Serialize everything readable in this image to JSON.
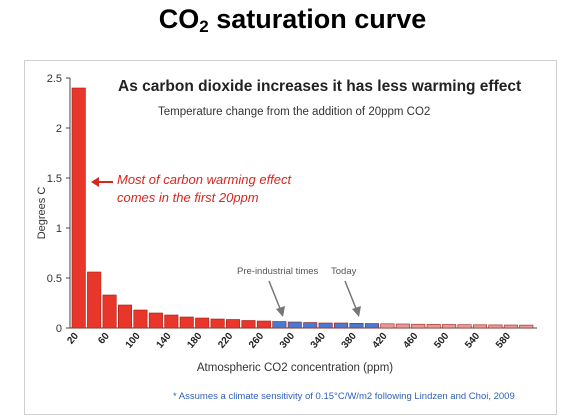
{
  "header": {
    "title_main": "CO",
    "title_sub": "2",
    "title_rest": " saturation curve"
  },
  "chart_data": {
    "type": "bar",
    "title": "As carbon dioxide increases it has less warming effect",
    "subtitle": "Temperature change from the addition of 20ppm CO2",
    "xlabel": "Atmospheric CO2 concentration (ppm)",
    "ylabel": "Degrees C",
    "ylim": [
      0,
      2.5
    ],
    "yticks": [
      "0",
      "0.5",
      "1",
      "1.5",
      "2",
      "2.5"
    ],
    "categories": [
      "20",
      "40",
      "60",
      "80",
      "100",
      "120",
      "140",
      "160",
      "180",
      "200",
      "220",
      "240",
      "260",
      "280",
      "300",
      "320",
      "340",
      "360",
      "380",
      "400",
      "420",
      "440",
      "460",
      "480",
      "500",
      "520",
      "540",
      "560",
      "580",
      "600"
    ],
    "xtick_labels": [
      "20",
      "60",
      "100",
      "140",
      "180",
      "220",
      "260",
      "300",
      "340",
      "380",
      "420",
      "460",
      "500",
      "540",
      "580"
    ],
    "values": [
      2.4,
      0.56,
      0.33,
      0.23,
      0.18,
      0.15,
      0.13,
      0.11,
      0.1,
      0.09,
      0.085,
      0.075,
      0.07,
      0.065,
      0.06,
      0.055,
      0.05,
      0.05,
      0.047,
      0.045,
      0.042,
      0.04,
      0.038,
      0.036,
      0.035,
      0.033,
      0.032,
      0.031,
      0.03,
      0.029
    ],
    "period_colors": {
      "early": "#e8372a",
      "pre_industrial_to_today": "#4a79d4",
      "future": "#e59a9a"
    },
    "annotations": {
      "first_20ppm": "Most of carbon warming effect comes in the first 20ppm",
      "pre_industrial": "Pre-industrial times",
      "today": "Today"
    },
    "footnote": "* Assumes a climate sensitivity of 0.15°C/W/m2 following Lindzen and Choi, 2009"
  }
}
